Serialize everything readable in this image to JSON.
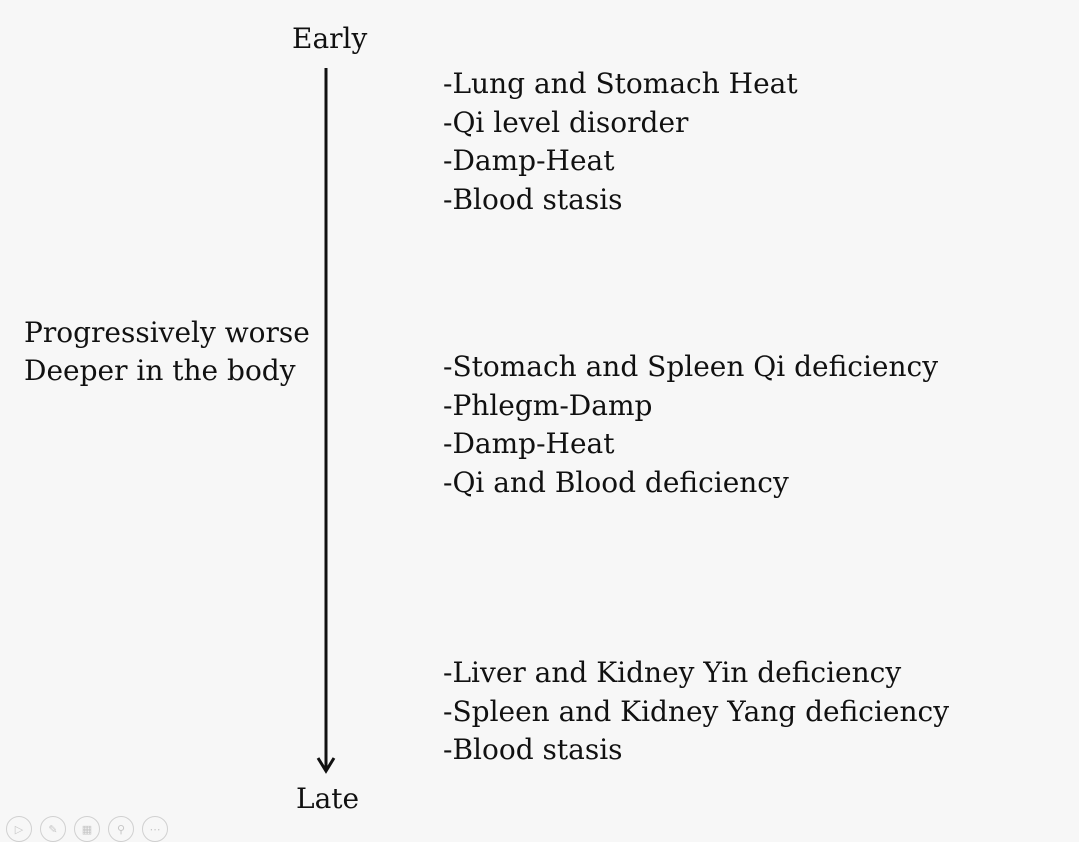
{
  "timeline": {
    "start_label": "Early",
    "end_label": "Late"
  },
  "side_note": {
    "line1": "Progressively worse",
    "line2": "Deeper in the body"
  },
  "groups": [
    {
      "items": [
        "-Lung and Stomach Heat",
        "-Qi level disorder",
        "-Damp-Heat",
        "-Blood stasis"
      ]
    },
    {
      "items": [
        "-Stomach and Spleen Qi deficiency",
        "-Phlegm-Damp",
        "-Damp-Heat",
        "-Qi and Blood deficiency"
      ]
    },
    {
      "items": [
        "-Liver and Kidney Yin deficiency",
        "-Spleen and Kidney Yang deficiency",
        "-Blood stasis"
      ]
    }
  ],
  "slideshow_toolbar": {
    "buttons": [
      {
        "icon": "play-icon",
        "glyph": "▷"
      },
      {
        "icon": "pen-icon",
        "glyph": "✎"
      },
      {
        "icon": "slides-icon",
        "glyph": "▦"
      },
      {
        "icon": "zoom-icon",
        "glyph": "⚲"
      },
      {
        "icon": "more-icon",
        "glyph": "⋯"
      }
    ]
  }
}
